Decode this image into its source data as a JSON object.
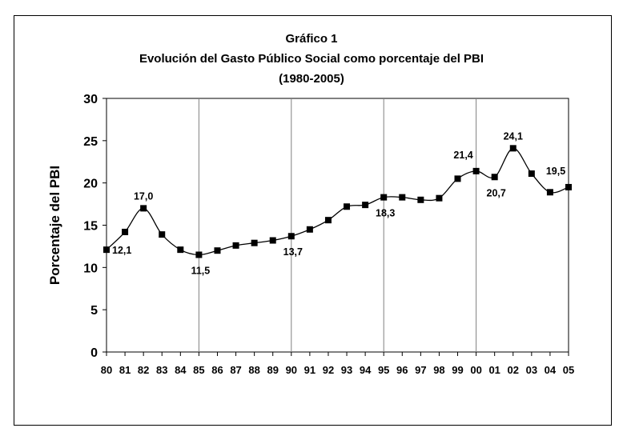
{
  "chart_data": {
    "type": "line",
    "title_lines": [
      "Gráfico 1",
      "Evolución del Gasto Público Social como porcentaje del PBI",
      "(1980-2005)"
    ],
    "xlabel": "",
    "ylabel": "Porcentaje del PBI",
    "ylim": [
      0,
      30
    ],
    "yticks": [
      "0",
      "5",
      "10",
      "15",
      "20",
      "25",
      "30"
    ],
    "categories": [
      "80",
      "81",
      "82",
      "83",
      "84",
      "85",
      "86",
      "87",
      "88",
      "89",
      "90",
      "91",
      "92",
      "93",
      "94",
      "95",
      "96",
      "97",
      "98",
      "99",
      "00",
      "01",
      "02",
      "03",
      "04",
      "05"
    ],
    "values": [
      12.1,
      14.2,
      17.0,
      13.9,
      12.1,
      11.5,
      12.0,
      12.6,
      12.9,
      13.2,
      13.7,
      14.5,
      15.6,
      17.2,
      17.4,
      18.3,
      18.3,
      18.0,
      18.2,
      20.5,
      21.4,
      20.7,
      24.1,
      21.1,
      18.9,
      19.5
    ],
    "data_labels": [
      {
        "index": 0,
        "text": "12,1",
        "position": "right"
      },
      {
        "index": 2,
        "text": "17,0",
        "position": "above"
      },
      {
        "index": 5,
        "text": "11,5",
        "position": "below"
      },
      {
        "index": 10,
        "text": "13,7",
        "position": "below"
      },
      {
        "index": 15,
        "text": "18,3",
        "position": "below"
      },
      {
        "index": 20,
        "text": "21,4",
        "position": "above-left"
      },
      {
        "index": 21,
        "text": "20,7",
        "position": "below"
      },
      {
        "index": 22,
        "text": "24,1",
        "position": "above"
      },
      {
        "index": 25,
        "text": "19,5",
        "position": "above-left"
      }
    ],
    "vertical_gridlines_at": [
      "85",
      "90",
      "95",
      "00"
    ],
    "grid": "vertical-only",
    "legend": "none",
    "line_color": "#000000",
    "marker": "square"
  }
}
